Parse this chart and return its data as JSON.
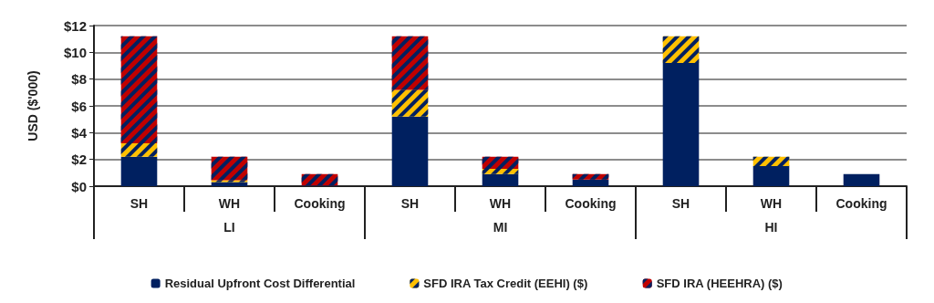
{
  "chart_data": {
    "type": "bar",
    "stacked": true,
    "ylabel": "USD ($'000)",
    "categories": [
      "SH",
      "WH",
      "Cooking",
      "SH",
      "WH",
      "Cooking",
      "SH",
      "WH",
      "Cooking"
    ],
    "annotations": [
      "LI",
      "MI",
      "HI"
    ],
    "series": [
      {
        "name": "Residual Upfront Cost Differential",
        "color": "#002060",
        "values": [
          2.2,
          0.3,
          0.05,
          5.2,
          0.9,
          0.5,
          9.2,
          1.5,
          0.9
        ]
      },
      {
        "name": "SFD IRA Tax Credit (EEHI) ($)",
        "color": "#ffc000",
        "values": [
          1.0,
          0.15,
          0,
          2.0,
          0.4,
          0,
          2.0,
          0.7,
          0
        ]
      },
      {
        "name": "SFD IRA (HEEHRA) ($)",
        "color": "#c00000",
        "values": [
          8.0,
          1.75,
          0.85,
          4.0,
          0.9,
          0.4,
          0,
          0,
          0
        ]
      }
    ],
    "ylim": [
      0,
      12
    ],
    "yticks": [
      {
        "value": 0,
        "label": "$0"
      },
      {
        "value": 2,
        "label": "$2"
      },
      {
        "value": 4,
        "label": "$4"
      },
      {
        "value": 6,
        "label": "$6"
      },
      {
        "value": 8,
        "label": "$8"
      },
      {
        "value": 10,
        "label": "$10"
      },
      {
        "value": 12,
        "label": "$12"
      }
    ],
    "grid": "y",
    "legend": "bottom"
  }
}
